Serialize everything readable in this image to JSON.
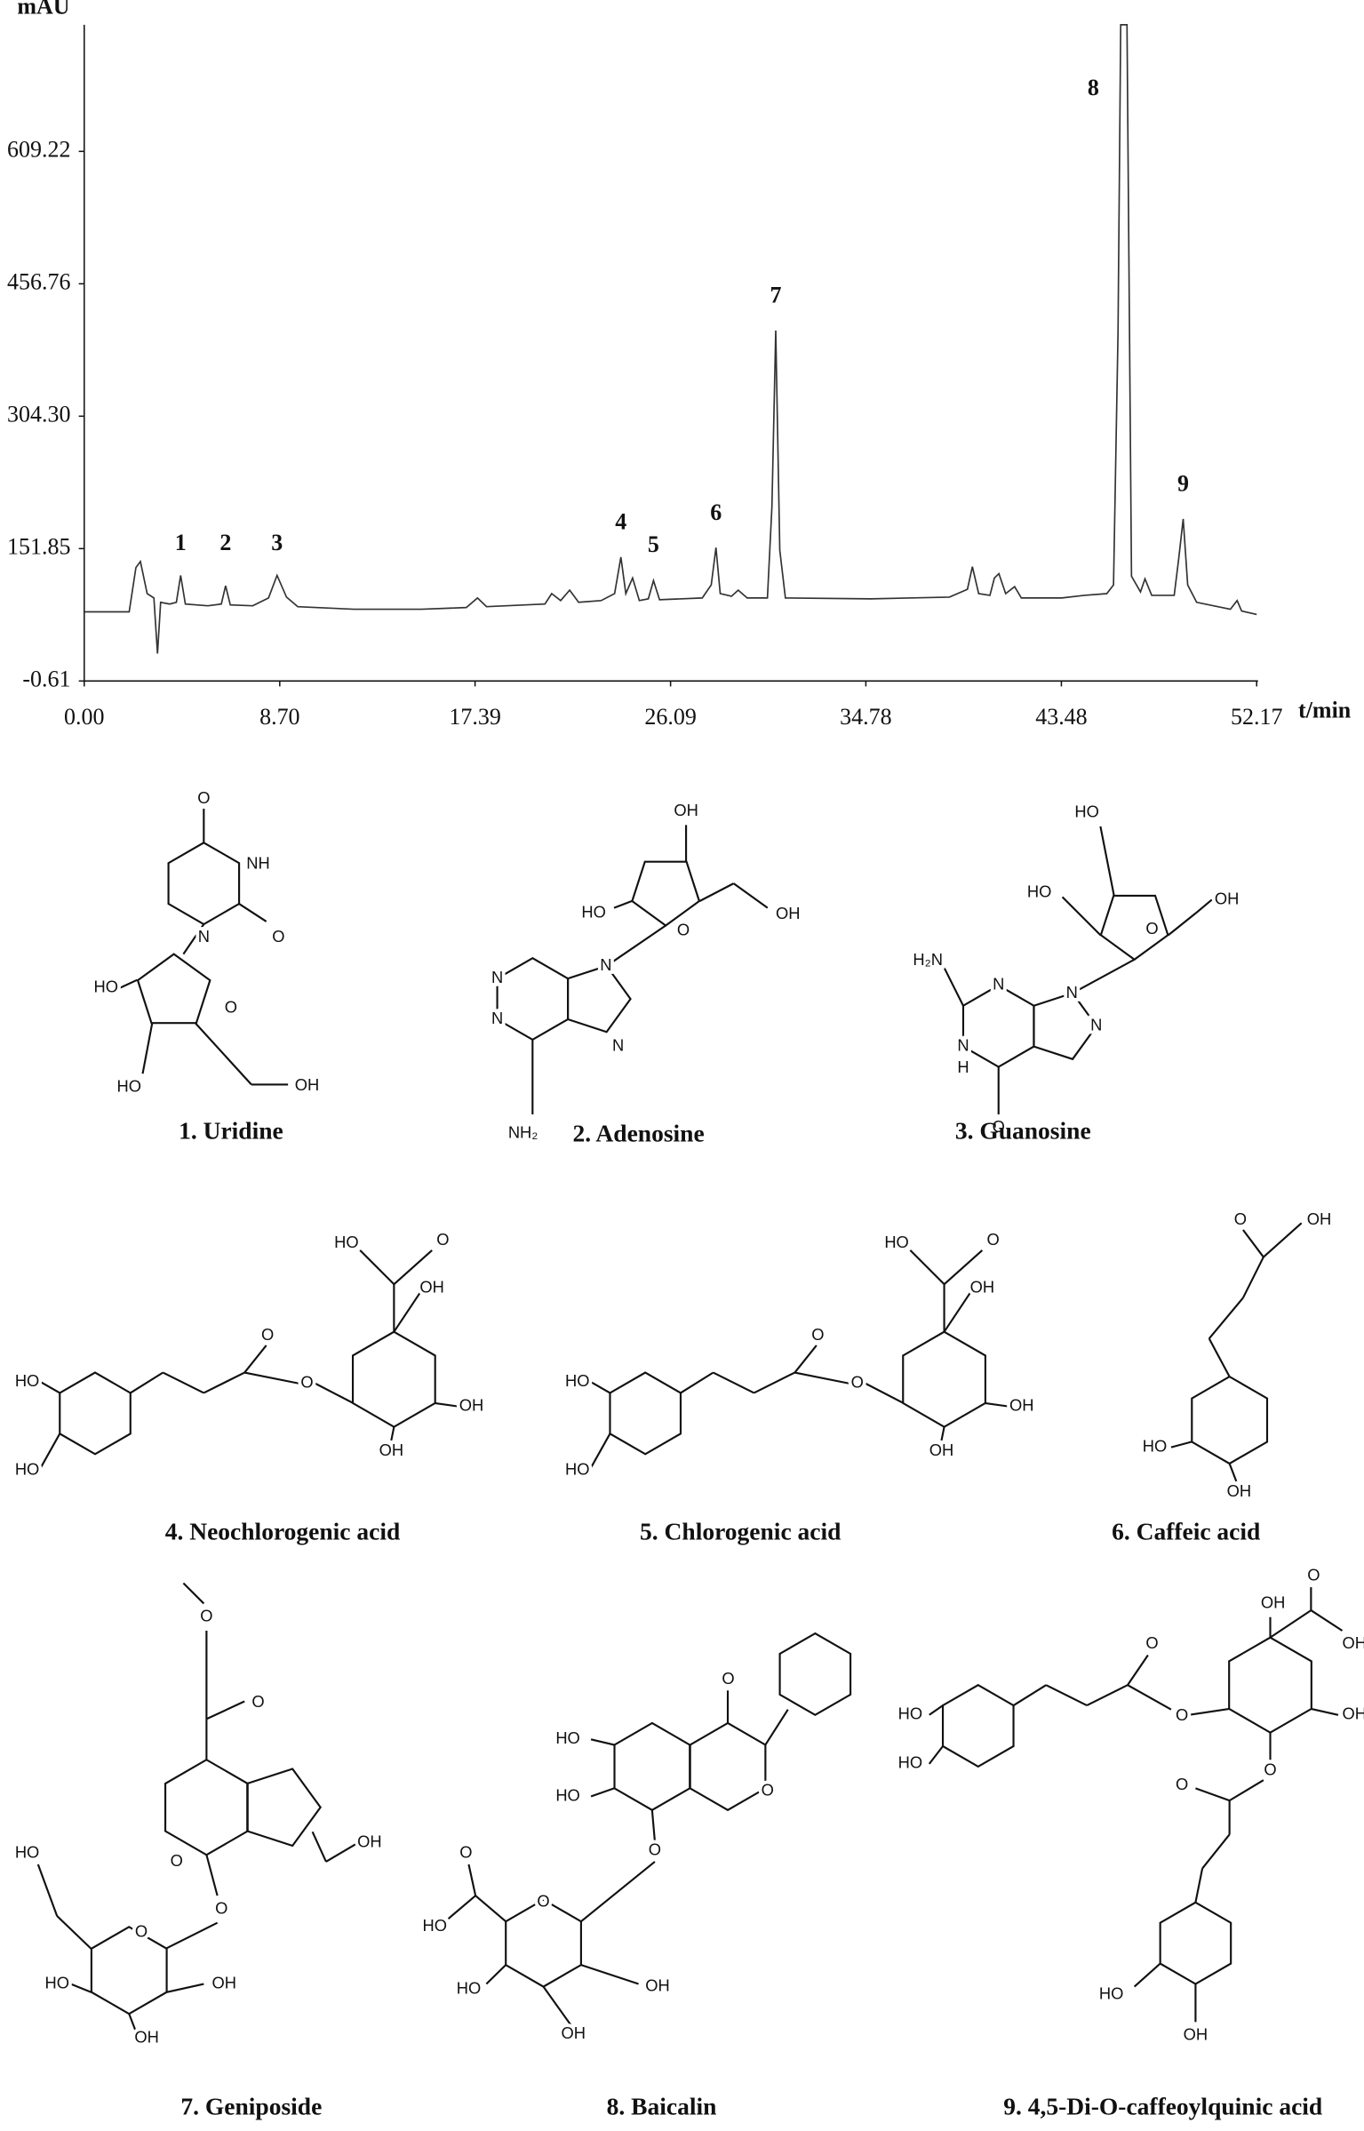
{
  "chart_data": {
    "type": "line",
    "y_label": "mAU",
    "x_label": "t/min",
    "color": "#333333",
    "xlim": [
      0,
      52.17
    ],
    "ylim": [
      -0.61,
      755
    ],
    "xticks": [
      {
        "value": 0,
        "label": "0.00"
      },
      {
        "value": 8.7,
        "label": "8.70"
      },
      17.39,
      26.09,
      34.78,
      43.48,
      52.17
    ],
    "yticks": [
      -0.61,
      151.85,
      {
        "value": 304.3,
        "label": "304.30"
      },
      456.76,
      609.22
    ],
    "x": [
      0,
      2.0,
      2.3,
      2.5,
      2.8,
      3.1,
      3.26,
      3.4,
      3.8,
      4.1,
      4.29,
      4.5,
      5.5,
      6.1,
      6.29,
      6.5,
      7.5,
      8.2,
      8.58,
      9.0,
      9.5,
      12,
      15,
      17.0,
      17.5,
      17.9,
      20.5,
      20.8,
      21.2,
      21.6,
      22.0,
      23.0,
      23.6,
      23.88,
      24.1,
      24.4,
      24.7,
      25.1,
      25.33,
      25.6,
      27.5,
      27.9,
      28.11,
      28.3,
      28.8,
      29.1,
      29.5,
      30.4,
      30.6,
      30.77,
      30.95,
      31.2,
      35,
      38.5,
      39.3,
      39.52,
      39.8,
      40.3,
      40.5,
      40.7,
      41.0,
      41.4,
      41.7,
      43.5,
      44.5,
      45.5,
      45.8,
      46.0,
      46.12,
      46.4,
      46.6,
      47.0,
      47.2,
      47.5,
      48.5,
      48.7,
      48.9,
      49.1,
      49.5,
      51,
      51.3,
      51.5,
      52.17
    ],
    "values": [
      79,
      79,
      130,
      137,
      100,
      95,
      31,
      90,
      88,
      90,
      121,
      88,
      86,
      88,
      109,
      87,
      86,
      95,
      121,
      96,
      85,
      82,
      82,
      84,
      95,
      85,
      88,
      100,
      92,
      104,
      90,
      92,
      100,
      142,
      100,
      118,
      92,
      94,
      115,
      93,
      95,
      110,
      153,
      100,
      97,
      104,
      95,
      95,
      200,
      403,
      150,
      95,
      94,
      96,
      105,
      131,
      100,
      98,
      118,
      123,
      100,
      108,
      95,
      95,
      98,
      100,
      110,
      400,
      755,
      755,
      120,
      102,
      117,
      98,
      98,
      140,
      186,
      110,
      90,
      82,
      92,
      80,
      76
    ],
    "annotations": [
      {
        "text": "1",
        "x": 4.29,
        "y": 150
      },
      {
        "text": "2",
        "x": 6.29,
        "y": 150
      },
      {
        "text": "3",
        "x": 8.58,
        "y": 150
      },
      {
        "text": "4",
        "x": 23.88,
        "y": 174
      },
      {
        "text": "5",
        "x": 25.33,
        "y": 148
      },
      {
        "text": "6",
        "x": 28.11,
        "y": 185
      },
      {
        "text": "7",
        "x": 30.77,
        "y": 435
      },
      {
        "text": "8",
        "x": 44.9,
        "y": 674
      },
      {
        "text": "9",
        "x": 48.9,
        "y": 218
      }
    ]
  },
  "compounds": [
    {
      "label": "1. Uridine",
      "atoms": [
        "O",
        "NH",
        "O",
        "N",
        "HO",
        "HO",
        "O",
        "OH"
      ]
    },
    {
      "label": "2. Adenosine",
      "atoms": [
        "OH",
        "HO",
        "OH",
        "O",
        "N",
        "N",
        "N",
        "N",
        "NH₂"
      ]
    },
    {
      "label": "3. Guanosine",
      "atoms": [
        "HO",
        "HO",
        "OH",
        "O",
        "N",
        "N",
        "N",
        "H₂N",
        "N",
        "H",
        "O"
      ]
    },
    {
      "label": "4. Neochlorogenic acid",
      "atoms": [
        "HO",
        "HO",
        "O",
        "O",
        "HO",
        "O",
        "OH",
        "OH",
        "OH"
      ]
    },
    {
      "label": "5. Chlorogenic acid",
      "atoms": [
        "HO",
        "HO",
        "O",
        "O",
        "HO",
        "O",
        "OH",
        "OH",
        "OH"
      ]
    },
    {
      "label": "6. Caffeic acid",
      "atoms": [
        "O",
        "OH",
        "HO",
        "OH"
      ]
    },
    {
      "label": "7. Geniposide",
      "atoms": [
        "O",
        "O",
        "O",
        "OH",
        "O",
        "O",
        "HO",
        "HO",
        "OH",
        "OH"
      ]
    },
    {
      "label": "8. Baicalin",
      "atoms": [
        "O",
        "O",
        "HO",
        "HO",
        "O",
        "O",
        "O",
        "HO",
        "HO",
        "OH",
        "OH"
      ]
    },
    {
      "label": "9. 4,5-Di-O-caffeoylquinic acid",
      "atoms": [
        "HO",
        "HO",
        "O",
        "O",
        "OH",
        "O",
        "OH",
        "OH",
        "O",
        "O",
        "HO",
        "OH"
      ]
    }
  ]
}
